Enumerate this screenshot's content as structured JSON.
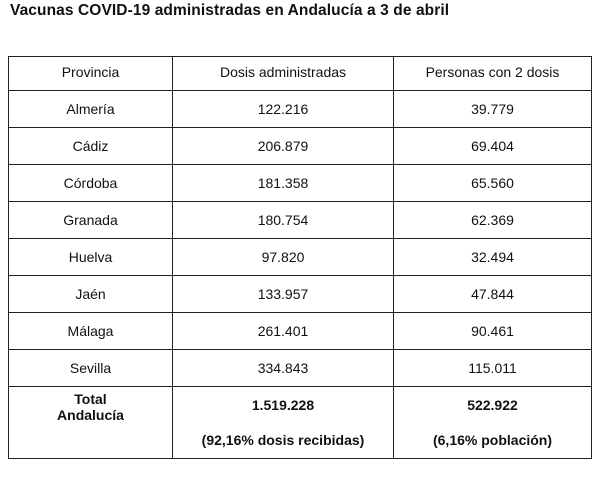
{
  "title": "Vacunas COVID-19 administradas  en Andalucía  a 3 de abril",
  "table": {
    "headers": [
      "Provincia",
      "Dosis administradas",
      "Personas con 2 dosis"
    ],
    "rows": [
      {
        "provincia": "Almería",
        "dosis": "122.216",
        "personas": "39.779"
      },
      {
        "provincia": "Cádiz",
        "dosis": "206.879",
        "personas": "69.404"
      },
      {
        "provincia": "Córdoba",
        "dosis": "181.358",
        "personas": "65.560"
      },
      {
        "provincia": "Granada",
        "dosis": "180.754",
        "personas": "62.369"
      },
      {
        "provincia": "Huelva",
        "dosis": "97.820",
        "personas": "32.494"
      },
      {
        "provincia": "Jaén",
        "dosis": "133.957",
        "personas": "47.844"
      },
      {
        "provincia": "Málaga",
        "dosis": "261.401",
        "personas": "90.461"
      },
      {
        "provincia": "Sevilla",
        "dosis": "334.843",
        "personas": "115.011"
      }
    ],
    "total": {
      "label_line1": "Total",
      "label_line2": "Andalucía",
      "dosis": "1.519.228",
      "dosis_note": "(92,16% dosis recibidas)",
      "personas": "522.922",
      "personas_note": "(6,16% población)"
    }
  }
}
